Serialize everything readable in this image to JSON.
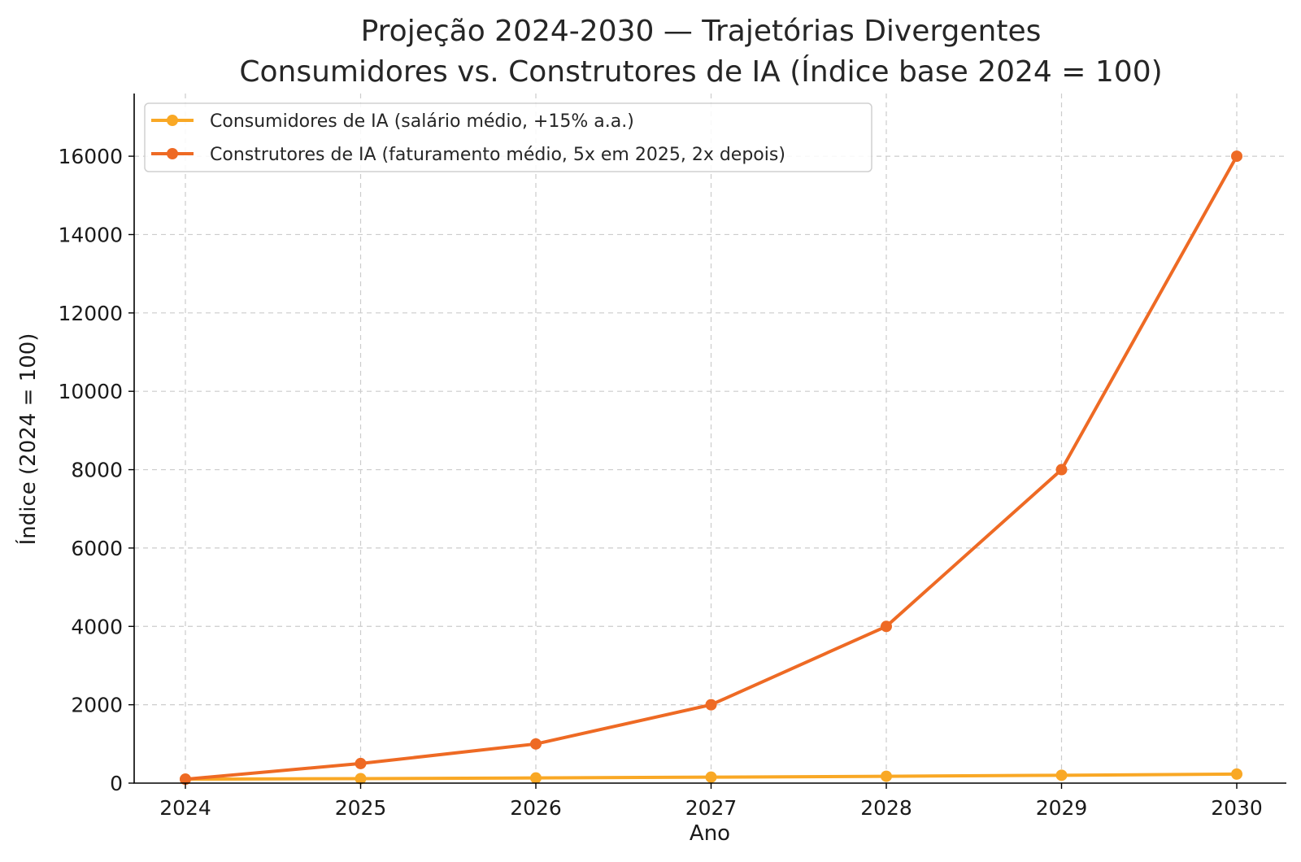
{
  "chart_data": {
    "type": "line",
    "title": "Projeção 2024-2030 — Trajetórias Divergentes",
    "subtitle": "Consumidores vs. Construtores de IA (Índice base 2024 = 100)",
    "xlabel": "Ano",
    "ylabel": "Índice (2024 = 100)",
    "x": [
      2024,
      2025,
      2026,
      2027,
      2028,
      2029,
      2030
    ],
    "xticks": [
      "2024",
      "2025",
      "2026",
      "2027",
      "2028",
      "2029",
      "2030"
    ],
    "yticks": [
      "0",
      "2000",
      "4000",
      "6000",
      "8000",
      "10000",
      "12000",
      "14000",
      "16000"
    ],
    "ylim": [
      0,
      17600
    ],
    "grid": true,
    "legend_position": "top-left",
    "series": [
      {
        "name": "Consumidores de IA (salário médio, +15% a.a.)",
        "color": "#F9A825",
        "values": [
          100,
          115,
          132,
          152,
          175,
          201,
          231
        ]
      },
      {
        "name": "Construtores de IA (faturamento médio, 5x em 2025, 2x depois)",
        "color": "#EE6A24",
        "values": [
          100,
          500,
          1000,
          2000,
          4000,
          8000,
          16000
        ]
      }
    ]
  }
}
